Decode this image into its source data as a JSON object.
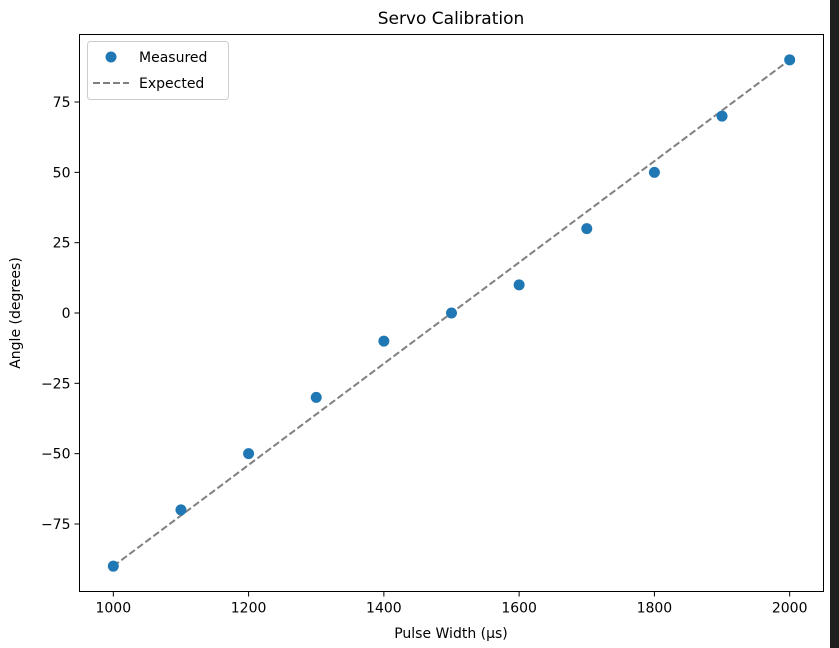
{
  "chart_data": {
    "type": "scatter",
    "title": "Servo Calibration",
    "xlabel": "Pulse Width (µs)",
    "ylabel": "Angle (degrees)",
    "xlim": [
      950,
      2050
    ],
    "ylim": [
      -99,
      99
    ],
    "xticks": [
      1000,
      1200,
      1400,
      1600,
      1800,
      2000
    ],
    "xtick_labels": [
      "1000",
      "1200",
      "1400",
      "1600",
      "1800",
      "2000"
    ],
    "yticks": [
      75,
      50,
      25,
      0,
      -25,
      -50,
      -75
    ],
    "ytick_labels": [
      "75",
      "50",
      "25",
      "0",
      "−25",
      "−50",
      "−75"
    ],
    "grid": false,
    "legend_position": "top-left",
    "series": [
      {
        "name": "Measured",
        "style": "markers",
        "color": "#1f77b4",
        "x": [
          1000,
          1100,
          1200,
          1300,
          1400,
          1500,
          1600,
          1700,
          1800,
          1900,
          2000
        ],
        "y": [
          -90,
          -70,
          -50,
          -30,
          -10,
          0,
          10,
          30,
          50,
          70,
          90
        ]
      },
      {
        "name": "Expected",
        "style": "dashed-line",
        "color": "#808080",
        "x": [
          1000,
          2000
        ],
        "y": [
          -90,
          90
        ]
      }
    ]
  }
}
